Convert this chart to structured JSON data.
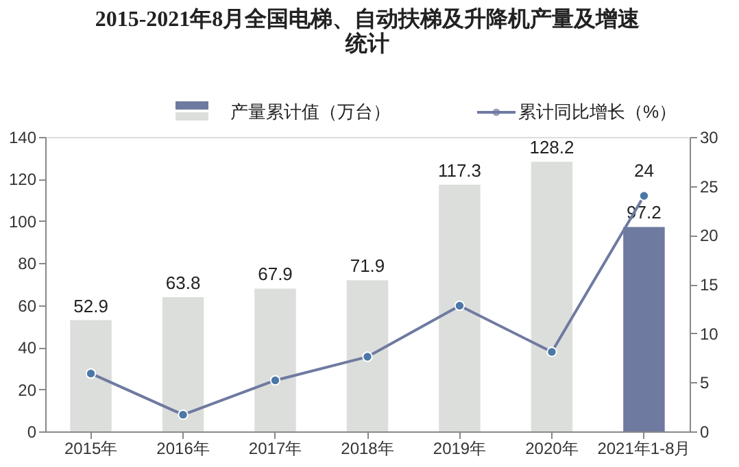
{
  "chart_data": {
    "type": "bar",
    "title": "2015-2021年8月全国电梯、自动扶梯及升降机产量及增速统计",
    "categories": [
      "2015年",
      "2016年",
      "2017年",
      "2018年",
      "2019年",
      "2020年",
      "2021年1-8月"
    ],
    "series": [
      {
        "name": "产量累计值（万台）",
        "colors": [
          "#dcdedc",
          "#dcdedc",
          "#dcdedc",
          "#dcdedc",
          "#dcdedc",
          "#dcdedc",
          "#6e7aa0"
        ],
        "values": [
          52.9,
          63.8,
          67.9,
          71.9,
          117.3,
          128.2,
          97.2
        ],
        "value_labels": [
          "52.9",
          "63.8",
          "67.9",
          "71.9",
          "117.3",
          "128.2",
          "97.2"
        ]
      },
      {
        "name": "累计同比增长（%）",
        "type": "line",
        "axis": "y2",
        "color": "#6e7aa0",
        "marker": "circle",
        "values": [
          5.9,
          1.7,
          5.2,
          7.6,
          12.8,
          8.1,
          24
        ],
        "value_labels": [
          null,
          null,
          null,
          null,
          null,
          null,
          "24"
        ]
      }
    ],
    "ylim": [
      0,
      140
    ],
    "yticks": [
      0,
      20,
      40,
      60,
      80,
      100,
      120,
      140
    ],
    "y2lim": [
      0,
      30
    ],
    "y2ticks": [
      0,
      5,
      10,
      15,
      20,
      25,
      30
    ],
    "grid": false,
    "legend": "top"
  }
}
